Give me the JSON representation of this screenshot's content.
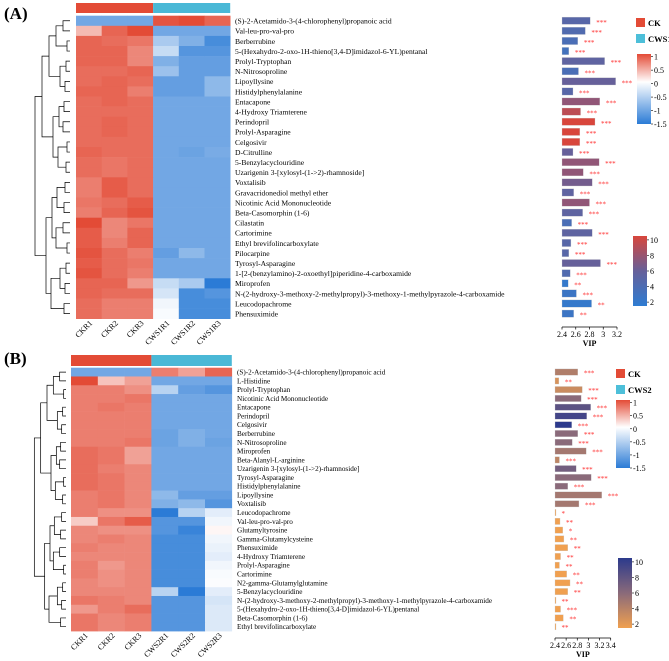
{
  "chart_data": [
    {
      "type": "heatmap",
      "panel_label": "(A)",
      "columns": [
        "CKR1",
        "CKR2",
        "CKR3",
        "CWS1R1",
        "CWS1R2",
        "CWS1R3"
      ],
      "groups": [
        {
          "name": "CK",
          "color": "#e34b36"
        },
        {
          "name": "CWS1",
          "color": "#4ab8d6"
        }
      ],
      "heat_scale": {
        "ticks": [
          "1",
          "0.5",
          "0",
          "-0.5",
          "-1",
          "-1.5"
        ],
        "min": -1.5,
        "max": 1.1
      },
      "vip_color_scale": {
        "ticks": [
          "10",
          "8",
          "6",
          "4",
          "2"
        ],
        "min": 2,
        "max": 10,
        "colors": [
          "#2e7cd2",
          "#66609a",
          "#d8463c"
        ]
      },
      "vip_axis": {
        "label": "VIP",
        "ticks": [
          "2.4",
          "2.6",
          "2.8",
          "3",
          "3.2"
        ],
        "range": [
          2.4,
          3.2
        ]
      },
      "rows": [
        {
          "name": "(S)-2-Acetamido-3-(4-chlorophenyl)propanoic acid",
          "heat": [
            -1,
            -1,
            -1,
            1,
            1.1,
            0.9
          ],
          "vip": 2.81,
          "color_value": 5,
          "sig": "***"
        },
        {
          "name": "Val-leu-pro-val-pro",
          "heat": [
            0.4,
            0.9,
            1.1,
            -1,
            -1,
            -1
          ],
          "vip": 2.74,
          "color_value": 4.5,
          "sig": "***"
        },
        {
          "name": "Berberrubine",
          "heat": [
            0.9,
            0.85,
            0.8,
            -0.6,
            -0.9,
            -1.3
          ],
          "vip": 2.63,
          "color_value": 4,
          "sig": "***"
        },
        {
          "name": "5-(Hexahydro-2-oxo-1H-thieno[3,4-D]imidazol-6-YL)pentanal",
          "heat": [
            0.9,
            0.9,
            0.7,
            -0.4,
            -1.2,
            -1.2
          ],
          "vip": 2.5,
          "color_value": 3.5,
          "sig": "***"
        },
        {
          "name": "Prolyl-Tryptophan",
          "heat": [
            0.9,
            0.9,
            0.7,
            -0.9,
            -1.1,
            -1.1
          ],
          "vip": 3.02,
          "color_value": 5.5,
          "sig": "***"
        },
        {
          "name": "N-Nitrosoproline",
          "heat": [
            0.85,
            0.85,
            0.9,
            -0.7,
            -1.1,
            -1.1
          ],
          "vip": 2.64,
          "color_value": 4,
          "sig": "***"
        },
        {
          "name": "Lipoyllysine",
          "heat": [
            0.85,
            0.9,
            0.85,
            -1.1,
            -1.1,
            -0.8
          ],
          "vip": 3.18,
          "color_value": 6,
          "sig": "***"
        },
        {
          "name": "Histidylphenylalanine",
          "heat": [
            0.9,
            0.9,
            0.75,
            -1.1,
            -1.1,
            -0.8
          ],
          "vip": 2.56,
          "color_value": 5,
          "sig": "***"
        },
        {
          "name": "Entacapone",
          "heat": [
            0.85,
            0.9,
            0.85,
            -1,
            -1,
            -1
          ],
          "vip": 2.95,
          "color_value": 7.5,
          "sig": "***"
        },
        {
          "name": "4-Hydroxy Triamterene",
          "heat": [
            0.85,
            0.85,
            0.85,
            -1,
            -1,
            -1
          ],
          "vip": 2.67,
          "color_value": 9,
          "sig": "***"
        },
        {
          "name": "Perindopril",
          "heat": [
            0.85,
            0.9,
            0.85,
            -1,
            -1,
            -1
          ],
          "vip": 2.88,
          "color_value": 10,
          "sig": "***"
        },
        {
          "name": "Prolyl-Asparagine",
          "heat": [
            0.85,
            0.9,
            0.85,
            -1,
            -1,
            -1
          ],
          "vip": 2.66,
          "color_value": 10,
          "sig": "***"
        },
        {
          "name": "Celgosivir",
          "heat": [
            0.85,
            0.85,
            0.85,
            -1,
            -1,
            -1
          ],
          "vip": 2.66,
          "color_value": 10,
          "sig": "***"
        },
        {
          "name": "D-Citrulline",
          "heat": [
            0.9,
            0.85,
            0.85,
            -1,
            -1.05,
            -0.95
          ],
          "vip": 2.56,
          "color_value": 6,
          "sig": "***"
        },
        {
          "name": "5-Benzylacyclouridine",
          "heat": [
            0.85,
            0.8,
            0.85,
            -1,
            -1,
            -1
          ],
          "vip": 2.94,
          "color_value": 7.5,
          "sig": "***"
        },
        {
          "name": "Uzarigenin 3-[xylosyl-(1->2)-rhamnoside]",
          "heat": [
            0.85,
            0.8,
            0.85,
            -1,
            -1,
            -1
          ],
          "vip": 2.71,
          "color_value": 7.5,
          "sig": "***"
        },
        {
          "name": "Voxtalisib",
          "heat": [
            0.75,
            0.95,
            0.85,
            -1,
            -1,
            -1
          ],
          "vip": 2.84,
          "color_value": 6.5,
          "sig": "***"
        },
        {
          "name": "Gravacridonediol methyl ether",
          "heat": [
            0.75,
            0.95,
            0.85,
            -1,
            -1,
            -1
          ],
          "vip": 2.57,
          "color_value": 5.5,
          "sig": "***"
        },
        {
          "name": "Nicotinic Acid Mononucleotide",
          "heat": [
            0.8,
            0.85,
            0.95,
            -1,
            -1,
            -1
          ],
          "vip": 2.8,
          "color_value": 7.5,
          "sig": "***"
        },
        {
          "name": "Beta-Casomorphin (1-6)",
          "heat": [
            0.75,
            0.9,
            1,
            -1,
            -1,
            -1
          ],
          "vip": 2.7,
          "color_value": 5.5,
          "sig": "***"
        },
        {
          "name": "Cilastatin",
          "heat": [
            1.05,
            0.7,
            0.8,
            -1,
            -1,
            -1
          ],
          "vip": 2.54,
          "color_value": 4,
          "sig": "***"
        },
        {
          "name": "Cartorimine",
          "heat": [
            0.95,
            0.7,
            0.9,
            -1,
            -1,
            -1
          ],
          "vip": 2.84,
          "color_value": 5.5,
          "sig": "***"
        },
        {
          "name": "Ethyl brevifolincarboxylate",
          "heat": [
            0.95,
            0.75,
            0.9,
            -1,
            -1,
            -1
          ],
          "vip": 2.53,
          "color_value": 5,
          "sig": "***"
        },
        {
          "name": "Pilocarpine",
          "heat": [
            1,
            0.85,
            0.75,
            -1.1,
            -0.8,
            -1
          ],
          "vip": 2.5,
          "color_value": 5,
          "sig": "***"
        },
        {
          "name": "Tyrosyl-Asparagine",
          "heat": [
            0.95,
            0.85,
            0.8,
            -1,
            -1,
            -1
          ],
          "vip": 2.96,
          "color_value": 6,
          "sig": "***"
        },
        {
          "name": "1-[2-(benzylamino)-2-oxoethyl]piperidine-4-carboxamide",
          "heat": [
            1,
            0.85,
            0.75,
            -1,
            -1,
            -1
          ],
          "vip": 2.52,
          "color_value": 4.5,
          "sig": "***"
        },
        {
          "name": "Miroprofen",
          "heat": [
            0.9,
            0.9,
            0.6,
            -0.4,
            -0.6,
            -1.6
          ],
          "vip": 2.49,
          "color_value": 2.5,
          "sig": "**"
        },
        {
          "name": "N-(2-hydroxy-3-methoxy-2-methylpropyl)-3-methoxy-1-methylpyrazole-4-carboxamide",
          "heat": [
            0.9,
            0.85,
            0.85,
            -0.3,
            -1.3,
            -1.2
          ],
          "vip": 2.61,
          "color_value": 3,
          "sig": "***"
        },
        {
          "name": "Leucodopachrome",
          "heat": [
            0.85,
            0.75,
            0.75,
            -0.1,
            -1.3,
            -1.3
          ],
          "vip": 2.83,
          "color_value": 2.5,
          "sig": "**"
        },
        {
          "name": "Phensuximide",
          "heat": [
            0.85,
            0.75,
            0.75,
            -0.05,
            -1.3,
            -1.3
          ],
          "vip": 2.57,
          "color_value": 3,
          "sig": "**"
        }
      ]
    },
    {
      "type": "heatmap",
      "panel_label": "(B)",
      "columns": [
        "CKR1",
        "CKR2",
        "CKR3",
        "CWS2R1",
        "CWS2R2",
        "CWS2R3"
      ],
      "groups": [
        {
          "name": "CK",
          "color": "#e34b36"
        },
        {
          "name": "CWS2",
          "color": "#4ab8d6"
        }
      ],
      "heat_scale": {
        "ticks": [
          "1",
          "0.5",
          "0",
          "-0.5",
          "-1",
          "-1.5"
        ],
        "min": -1.5,
        "max": 1.1
      },
      "vip_color_scale": {
        "ticks": [
          "10",
          "8",
          "6",
          "4",
          "2"
        ],
        "min": 2,
        "max": 10,
        "colors": [
          "#f0a050",
          "#8a6a7a",
          "#2c3a8c"
        ]
      },
      "vip_axis": {
        "label": "VIP",
        "ticks": [
          "2.4",
          "2.6",
          "2.8",
          "3",
          "3.2",
          "3.4"
        ],
        "range": [
          2.4,
          3.4
        ]
      },
      "rows": [
        {
          "name": "(S)-2-Acetamido-3-(4-chlorophenyl)propanoic acid",
          "heat": [
            -1,
            -1,
            -1,
            0.75,
            0.55,
            0.9
          ],
          "vip": 2.81,
          "color_value": 4.5,
          "sig": "***"
        },
        {
          "name": "L-Histidine",
          "heat": [
            1.05,
            0.35,
            0.55,
            -1,
            -1,
            -1
          ],
          "vip": 2.47,
          "color_value": 3,
          "sig": "**"
        },
        {
          "name": "Prolyl-Tryptophan",
          "heat": [
            0.75,
            0.75,
            0.65,
            -0.5,
            -1.1,
            -1.2
          ],
          "vip": 2.89,
          "color_value": 3.5,
          "sig": "***"
        },
        {
          "name": "Nicotinic Acid Mononucleotide",
          "heat": [
            0.75,
            0.75,
            0.8,
            -1,
            -1,
            -1
          ],
          "vip": 2.87,
          "color_value": 6,
          "sig": "***"
        },
        {
          "name": "Entacapone",
          "heat": [
            0.75,
            0.8,
            0.75,
            -1,
            -1,
            -1
          ],
          "vip": 3.04,
          "color_value": 8,
          "sig": "***"
        },
        {
          "name": "Perindopril",
          "heat": [
            0.75,
            0.75,
            0.75,
            -1,
            -1,
            -1
          ],
          "vip": 2.97,
          "color_value": 9,
          "sig": "***"
        },
        {
          "name": "Celgosivir",
          "heat": [
            0.75,
            0.75,
            0.75,
            -1,
            -1,
            -1
          ],
          "vip": 2.7,
          "color_value": 10,
          "sig": "***"
        },
        {
          "name": "Berberrubine",
          "heat": [
            0.75,
            0.75,
            0.75,
            -1.05,
            -0.9,
            -1
          ],
          "vip": 2.81,
          "color_value": 6,
          "sig": "***"
        },
        {
          "name": "N-Nitrosoproline",
          "heat": [
            0.75,
            0.75,
            0.8,
            -1.05,
            -0.9,
            -1.05
          ],
          "vip": 2.71,
          "color_value": 6,
          "sig": "***"
        },
        {
          "name": "Miroprofen",
          "heat": [
            0.85,
            0.8,
            0.55,
            -1,
            -1,
            -1
          ],
          "vip": 2.96,
          "color_value": 5,
          "sig": "***"
        },
        {
          "name": "Beta-Alanyl-L-arginine",
          "heat": [
            0.85,
            0.8,
            0.55,
            -1,
            -1,
            -1
          ],
          "vip": 2.48,
          "color_value": 4,
          "sig": "***"
        },
        {
          "name": "Uzarigenin 3-[xylosyl-(1->2)-rhamnoside]",
          "heat": [
            0.85,
            0.75,
            0.7,
            -1,
            -1,
            -1
          ],
          "vip": 2.78,
          "color_value": 7,
          "sig": "***"
        },
        {
          "name": "Tyrosyl-Asparagine",
          "heat": [
            0.85,
            0.8,
            0.7,
            -1,
            -1,
            -1
          ],
          "vip": 3.05,
          "color_value": 6,
          "sig": "***"
        },
        {
          "name": "Histidylphenylalanine",
          "heat": [
            0.85,
            0.8,
            0.7,
            -1,
            -1,
            -1
          ],
          "vip": 2.63,
          "color_value": 6,
          "sig": "***"
        },
        {
          "name": "Lipoyllysine",
          "heat": [
            0.75,
            0.8,
            0.7,
            -0.8,
            -1.1,
            -1.1
          ],
          "vip": 3.24,
          "color_value": 5,
          "sig": "***"
        },
        {
          "name": "Voxtalisib",
          "heat": [
            0.75,
            0.8,
            0.7,
            -0.9,
            -0.8,
            -1.2
          ],
          "vip": 2.83,
          "color_value": 5,
          "sig": "***"
        },
        {
          "name": "Leucodopachrome",
          "heat": [
            0.75,
            0.65,
            0.65,
            -1.5,
            -0.5,
            -0.2
          ],
          "vip": 2.41,
          "color_value": 2,
          "sig": "*"
        },
        {
          "name": "Val-leu-pro-val-pro",
          "heat": [
            0.3,
            0.8,
            0.95,
            -1.2,
            -1.2,
            -0.1
          ],
          "vip": 2.49,
          "color_value": 2,
          "sig": "**"
        },
        {
          "name": "Glutamyltyrosine",
          "heat": [
            0.7,
            0.65,
            0.65,
            -1.2,
            -1.4,
            0.05
          ],
          "vip": 2.54,
          "color_value": 2,
          "sig": "*"
        },
        {
          "name": "Gamma-Glutamylcysteine",
          "heat": [
            0.7,
            0.75,
            0.7,
            -1.3,
            -1.3,
            -0.1
          ],
          "vip": 2.56,
          "color_value": 2,
          "sig": "**"
        },
        {
          "name": "Phensuximide",
          "heat": [
            0.75,
            0.7,
            0.7,
            -1.3,
            -1.3,
            -0.15
          ],
          "vip": 2.63,
          "color_value": 2,
          "sig": "**"
        },
        {
          "name": "4-Hydroxy Triamterene",
          "heat": [
            0.7,
            0.7,
            0.7,
            -1.3,
            -1.3,
            -0.2
          ],
          "vip": 2.5,
          "color_value": 2,
          "sig": "**"
        },
        {
          "name": "Prolyl-Asparagine",
          "heat": [
            0.75,
            0.6,
            0.7,
            -1.3,
            -1.3,
            -0.1
          ],
          "vip": 2.48,
          "color_value": 2,
          "sig": "**"
        },
        {
          "name": "Cartorimine",
          "heat": [
            0.75,
            0.65,
            0.7,
            -1.3,
            -1.3,
            -0.05
          ],
          "vip": 2.61,
          "color_value": 2,
          "sig": "**"
        },
        {
          "name": "N2-gamma-Glutamylglutamine",
          "heat": [
            0.7,
            0.65,
            0.7,
            -1.3,
            -1.3,
            -0.03
          ],
          "vip": 2.67,
          "color_value": 2,
          "sig": "**"
        },
        {
          "name": "5-Benzylacyclouridine",
          "heat": [
            0.7,
            0.7,
            0.7,
            -0.5,
            -1.5,
            -0.2
          ],
          "vip": 2.63,
          "color_value": 2,
          "sig": "**"
        },
        {
          "name": "N-(2-hydroxy-3-methoxy-2-methylpropyl)-3-methoxy-1-methylpyrazole-4-carboxamide",
          "heat": [
            0.8,
            0.75,
            0.7,
            -1.2,
            -1.2,
            -0.3
          ],
          "vip": 2.41,
          "color_value": 2,
          "sig": "**"
        },
        {
          "name": "5-(Hexahydro-2-oxo-1H-thieno[3,4-D]imidazol-6-YL)pentanal",
          "heat": [
            0.6,
            0.75,
            0.85,
            -1.2,
            -1.2,
            -0.25
          ],
          "vip": 2.5,
          "color_value": 2,
          "sig": "***"
        },
        {
          "name": "Beta-Casomorphin (1-6)",
          "heat": [
            0.8,
            0.7,
            0.75,
            -1.2,
            -1.2,
            -0.25
          ],
          "vip": 2.55,
          "color_value": 2,
          "sig": "**"
        },
        {
          "name": "Ethyl brevifolincarboxylate",
          "heat": [
            0.8,
            0.7,
            0.75,
            -1.2,
            -1.2,
            -0.25
          ],
          "vip": 2.41,
          "color_value": 2,
          "sig": "**"
        }
      ]
    }
  ]
}
